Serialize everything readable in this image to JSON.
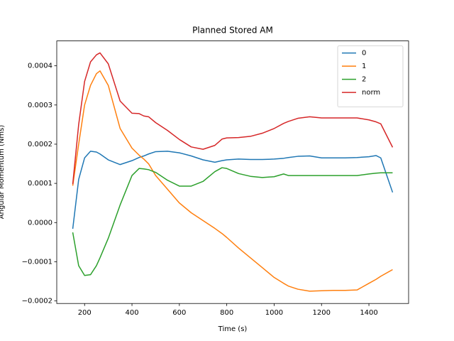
{
  "chart_data": {
    "type": "line",
    "title": "Planned Stored AM",
    "x_label": "Time (s)",
    "y_label": "Angular Momentum (Nms)",
    "x": [
      150,
      175,
      200,
      225,
      250,
      265,
      300,
      350,
      400,
      430,
      450,
      470,
      500,
      550,
      600,
      650,
      700,
      750,
      780,
      800,
      850,
      900,
      950,
      1000,
      1040,
      1060,
      1100,
      1150,
      1200,
      1250,
      1300,
      1350,
      1400,
      1430,
      1450,
      1500
    ],
    "series": [
      {
        "name": "0",
        "color": "#1f77b4",
        "values": [
          -1.6e-05,
          0.00011,
          0.000165,
          0.000182,
          0.00018,
          0.000175,
          0.00016,
          0.000148,
          0.000158,
          0.000166,
          0.00017,
          0.000175,
          0.000181,
          0.000182,
          0.000178,
          0.00017,
          0.00016,
          0.000154,
          0.000158,
          0.00016,
          0.000162,
          0.000161,
          0.000161,
          0.000162,
          0.000164,
          0.000166,
          0.000169,
          0.00017,
          0.000165,
          0.000165,
          0.000165,
          0.000166,
          0.000168,
          0.000171,
          0.000165,
          7.7e-05
        ]
      },
      {
        "name": "1",
        "color": "#ff7f0e",
        "values": [
          9.4e-05,
          0.0002,
          0.0003,
          0.00035,
          0.00038,
          0.000387,
          0.00035,
          0.00024,
          0.00019,
          0.000172,
          0.000162,
          0.00015,
          0.00012,
          8.5e-05,
          5e-05,
          2.5e-05,
          5e-06,
          -1.5e-05,
          -2.8e-05,
          -3.8e-05,
          -6.5e-05,
          -9e-05,
          -0.000115,
          -0.00014,
          -0.000155,
          -0.000162,
          -0.00017,
          -0.000175,
          -0.000174,
          -0.000173,
          -0.000173,
          -0.000172,
          -0.000155,
          -0.000145,
          -0.000137,
          -0.00012
        ]
      },
      {
        "name": "2",
        "color": "#2ca02c",
        "values": [
          -2.5e-05,
          -0.00011,
          -0.000135,
          -0.000133,
          -0.00011,
          -9e-05,
          -4e-05,
          4.5e-05,
          0.00012,
          0.000138,
          0.000137,
          0.000135,
          0.000128,
          0.000108,
          9.3e-05,
          9.3e-05,
          0.000105,
          0.00013,
          0.00014,
          0.000138,
          0.000125,
          0.000118,
          0.000115,
          0.000117,
          0.000124,
          0.00012,
          0.00012,
          0.00012,
          0.00012,
          0.00012,
          0.00012,
          0.00012,
          0.000124,
          0.000126,
          0.000127,
          0.000127
        ]
      },
      {
        "name": "norm",
        "color": "#d62728",
        "values": [
          9.8e-05,
          0.00025,
          0.00036,
          0.00041,
          0.000428,
          0.000433,
          0.000405,
          0.00031,
          0.000279,
          0.000278,
          0.000272,
          0.00027,
          0.000255,
          0.000235,
          0.000212,
          0.000193,
          0.000187,
          0.000197,
          0.000213,
          0.000216,
          0.000217,
          0.00022,
          0.000228,
          0.00024,
          0.000253,
          0.000258,
          0.000266,
          0.00027,
          0.000267,
          0.000267,
          0.000267,
          0.000267,
          0.000262,
          0.000257,
          0.000252,
          0.000192
        ]
      }
    ],
    "xlim": [
      82.5,
      1567.5
    ],
    "ylim": [
      -0.0002065,
      0.0004635
    ],
    "xticks": [
      200,
      400,
      600,
      800,
      1000,
      1200,
      1400
    ],
    "yticks": [
      {
        "value": -0.0002,
        "label": "−0.0002"
      },
      {
        "value": -0.0001,
        "label": "−0.0001"
      },
      {
        "value": 0,
        "label": "0.0000"
      },
      {
        "value": 0.0001,
        "label": "0.0001"
      },
      {
        "value": 0.0002,
        "label": "0.0002"
      },
      {
        "value": 0.0003,
        "label": "0.0003"
      },
      {
        "value": 0.0004,
        "label": "0.0004"
      }
    ],
    "legend": "upper right"
  }
}
